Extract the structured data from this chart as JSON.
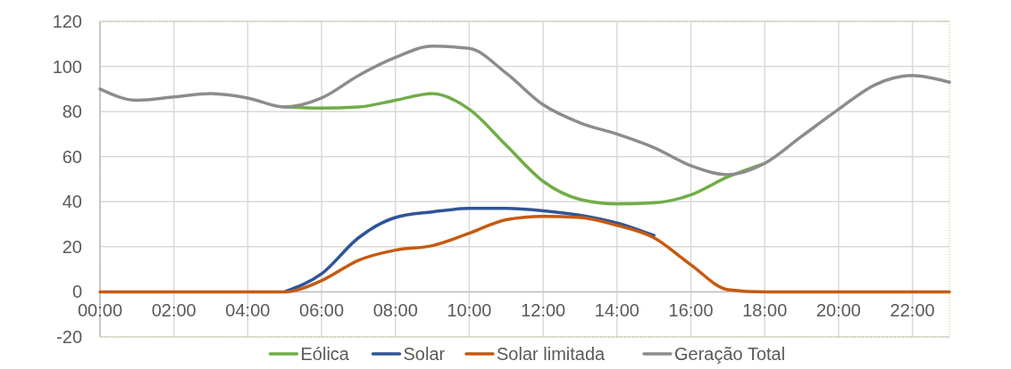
{
  "chart_data": {
    "type": "line",
    "x": [
      0,
      1,
      2,
      3,
      4,
      5,
      6,
      7,
      8,
      9,
      10,
      11,
      12,
      13,
      14,
      15,
      16,
      17,
      18,
      19,
      20,
      21,
      22,
      23
    ],
    "xlim": [
      0,
      23
    ],
    "xticks": [
      {
        "value": 0,
        "label": "00:00"
      },
      {
        "value": 2,
        "label": "02:00"
      },
      {
        "value": 4,
        "label": "04:00"
      },
      {
        "value": 6,
        "label": "06:00"
      },
      {
        "value": 8,
        "label": "08:00"
      },
      {
        "value": 10,
        "label": "10:00"
      },
      {
        "value": 12,
        "label": "12:00"
      },
      {
        "value": 14,
        "label": "14:00"
      },
      {
        "value": 16,
        "label": "16:00"
      },
      {
        "value": 18,
        "label": "18:00"
      },
      {
        "value": 20,
        "label": "20:00"
      },
      {
        "value": 22,
        "label": "22:00"
      }
    ],
    "ylim": [
      -20,
      120
    ],
    "yticks": [
      -20,
      0,
      20,
      40,
      60,
      80,
      100,
      120
    ],
    "grid": true,
    "legend": "bottom",
    "marker": "none",
    "line_style": "solid",
    "series": [
      {
        "name": "Eólica",
        "color": "#70ad47",
        "values": [
          null,
          null,
          null,
          null,
          null,
          82,
          81.5,
          82,
          85,
          88,
          81,
          65,
          49,
          41,
          39,
          39.5,
          43,
          51,
          57,
          null,
          null,
          null,
          null,
          null
        ]
      },
      {
        "name": "Solar",
        "color": "#2f5597",
        "values": [
          null,
          null,
          null,
          null,
          null,
          0,
          8,
          24,
          33,
          35.5,
          37,
          37,
          36,
          34,
          30.5,
          25,
          null,
          null,
          null,
          null,
          null,
          null,
          null,
          null
        ]
      },
      {
        "name": "Solar limitada",
        "color": "#c55a11",
        "values": [
          0,
          0,
          0,
          0,
          0,
          0,
          5,
          14,
          18.5,
          20.5,
          26,
          32,
          33.5,
          33,
          29.5,
          24,
          12,
          1,
          0,
          0,
          0,
          0,
          0,
          0
        ]
      },
      {
        "name": "Geração Total",
        "color": "#8c8c8c",
        "values": [
          90,
          85,
          86.5,
          88,
          86,
          82,
          86,
          96,
          104,
          109,
          108,
          97,
          83,
          75,
          70,
          64,
          56,
          52,
          57,
          69,
          81,
          92,
          96,
          93
        ]
      }
    ]
  }
}
